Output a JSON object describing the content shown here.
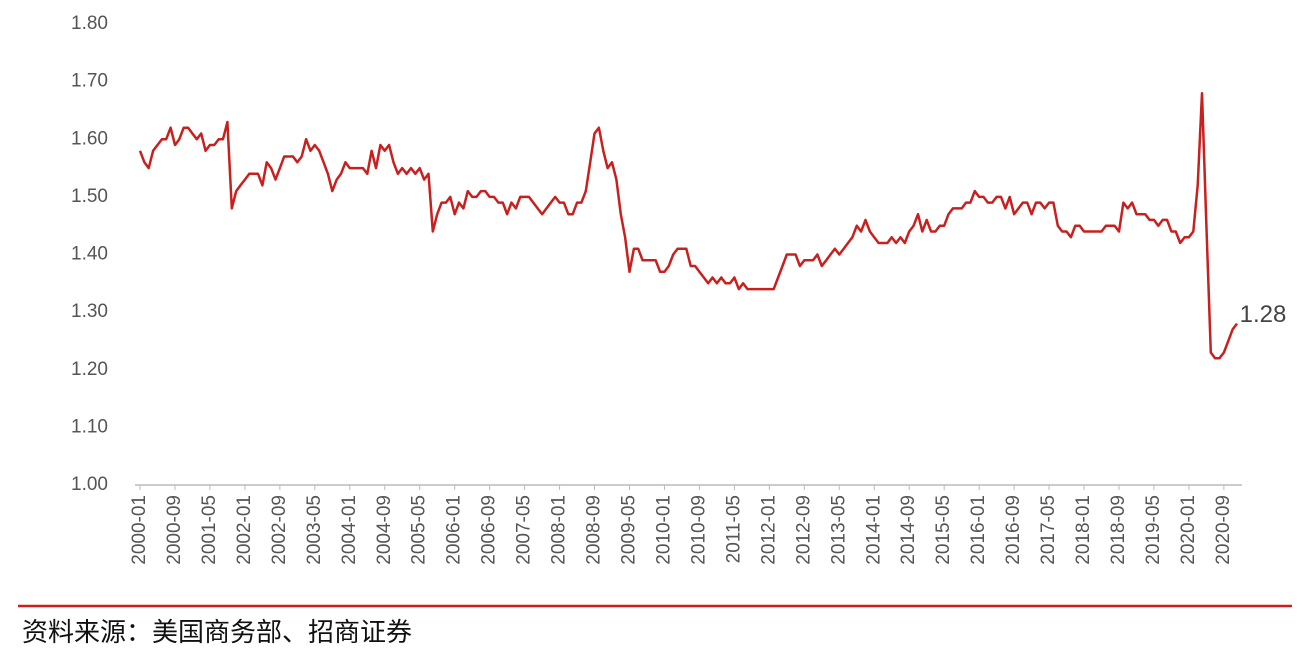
{
  "chart_data": {
    "type": "line",
    "categories": [
      "2000-01",
      null,
      null,
      null,
      null,
      null,
      null,
      null,
      "2000-09",
      null,
      null,
      null,
      null,
      null,
      null,
      null,
      "2001-05",
      null,
      null,
      null,
      null,
      null,
      null,
      null,
      "2002-01",
      null,
      null,
      null,
      null,
      null,
      null,
      null,
      "2002-09",
      null,
      null,
      null,
      null,
      null,
      null,
      null,
      "2003-05",
      null,
      null,
      null,
      null,
      null,
      null,
      null,
      "2004-01",
      null,
      null,
      null,
      null,
      null,
      null,
      null,
      "2004-09",
      null,
      null,
      null,
      null,
      null,
      null,
      null,
      "2005-05",
      null,
      null,
      null,
      null,
      null,
      null,
      null,
      "2006-01",
      null,
      null,
      null,
      null,
      null,
      null,
      null,
      "2006-09",
      null,
      null,
      null,
      null,
      null,
      null,
      null,
      "2007-05",
      null,
      null,
      null,
      null,
      null,
      null,
      null,
      "2008-01",
      null,
      null,
      null,
      null,
      null,
      null,
      null,
      "2008-09",
      null,
      null,
      null,
      null,
      null,
      null,
      null,
      "2009-05",
      null,
      null,
      null,
      null,
      null,
      null,
      null,
      "2010-01",
      null,
      null,
      null,
      null,
      null,
      null,
      null,
      "2010-09",
      null,
      null,
      null,
      null,
      null,
      null,
      null,
      "2011-05",
      null,
      null,
      null,
      null,
      null,
      null,
      null,
      "2012-01",
      null,
      null,
      null,
      null,
      null,
      null,
      null,
      "2012-09",
      null,
      null,
      null,
      null,
      null,
      null,
      null,
      "2013-05",
      null,
      null,
      null,
      null,
      null,
      null,
      null,
      "2014-01",
      null,
      null,
      null,
      null,
      null,
      null,
      null,
      "2014-09",
      null,
      null,
      null,
      null,
      null,
      null,
      null,
      "2015-05",
      null,
      null,
      null,
      null,
      null,
      null,
      null,
      "2016-01",
      null,
      null,
      null,
      null,
      null,
      null,
      null,
      "2016-09",
      null,
      null,
      null,
      null,
      null,
      null,
      null,
      "2017-05",
      null,
      null,
      null,
      null,
      null,
      null,
      null,
      "2018-01",
      null,
      null,
      null,
      null,
      null,
      null,
      null,
      "2018-09",
      null,
      null,
      null,
      null,
      null,
      null,
      null,
      "2019-05",
      null,
      null,
      null,
      null,
      null,
      null,
      null,
      "2020-01",
      null,
      null,
      null,
      null,
      null,
      null,
      null,
      "2020-09",
      null,
      null,
      null
    ],
    "series": [
      {
        "color": "#c8201e",
        "values": [
          1.58,
          1.56,
          1.55,
          1.58,
          1.59,
          1.6,
          1.6,
          1.62,
          1.59,
          1.6,
          1.62,
          1.62,
          1.61,
          1.6,
          1.61,
          1.58,
          1.59,
          1.59,
          1.6,
          1.6,
          1.63,
          1.48,
          1.51,
          1.52,
          1.53,
          1.54,
          1.54,
          1.54,
          1.52,
          1.56,
          1.55,
          1.53,
          1.55,
          1.57,
          1.57,
          1.57,
          1.56,
          1.57,
          1.6,
          1.58,
          1.59,
          1.58,
          1.56,
          1.54,
          1.51,
          1.53,
          1.54,
          1.56,
          1.55,
          1.55,
          1.55,
          1.55,
          1.54,
          1.58,
          1.55,
          1.59,
          1.58,
          1.59,
          1.56,
          1.54,
          1.55,
          1.54,
          1.55,
          1.54,
          1.55,
          1.53,
          1.54,
          1.44,
          1.47,
          1.49,
          1.49,
          1.5,
          1.47,
          1.49,
          1.48,
          1.51,
          1.5,
          1.5,
          1.51,
          1.51,
          1.5,
          1.5,
          1.49,
          1.49,
          1.47,
          1.49,
          1.48,
          1.5,
          1.5,
          1.5,
          1.49,
          1.48,
          1.47,
          1.48,
          1.49,
          1.5,
          1.49,
          1.49,
          1.47,
          1.47,
          1.49,
          1.49,
          1.51,
          1.56,
          1.61,
          1.62,
          1.58,
          1.55,
          1.56,
          1.53,
          1.47,
          1.43,
          1.37,
          1.41,
          1.41,
          1.39,
          1.39,
          1.39,
          1.39,
          1.37,
          1.37,
          1.38,
          1.4,
          1.41,
          1.41,
          1.41,
          1.38,
          1.38,
          1.37,
          1.36,
          1.35,
          1.36,
          1.35,
          1.36,
          1.35,
          1.35,
          1.36,
          1.34,
          1.35,
          1.34,
          1.34,
          1.34,
          1.34,
          1.34,
          1.34,
          1.34,
          1.36,
          1.38,
          1.4,
          1.4,
          1.4,
          1.38,
          1.39,
          1.39,
          1.39,
          1.4,
          1.38,
          1.39,
          1.4,
          1.41,
          1.4,
          1.41,
          1.42,
          1.43,
          1.45,
          1.44,
          1.46,
          1.44,
          1.43,
          1.42,
          1.42,
          1.42,
          1.43,
          1.42,
          1.43,
          1.42,
          1.44,
          1.45,
          1.47,
          1.44,
          1.46,
          1.44,
          1.44,
          1.45,
          1.45,
          1.47,
          1.48,
          1.48,
          1.48,
          1.49,
          1.49,
          1.51,
          1.5,
          1.5,
          1.49,
          1.49,
          1.5,
          1.5,
          1.48,
          1.5,
          1.47,
          1.48,
          1.49,
          1.49,
          1.47,
          1.49,
          1.49,
          1.48,
          1.49,
          1.49,
          1.45,
          1.44,
          1.44,
          1.43,
          1.45,
          1.45,
          1.44,
          1.44,
          1.44,
          1.44,
          1.44,
          1.45,
          1.45,
          1.45,
          1.44,
          1.49,
          1.48,
          1.49,
          1.47,
          1.47,
          1.47,
          1.46,
          1.46,
          1.45,
          1.46,
          1.46,
          1.44,
          1.44,
          1.42,
          1.43,
          1.43,
          1.44,
          1.52,
          1.68,
          1.45,
          1.23,
          1.22,
          1.22,
          1.23,
          1.25,
          1.27,
          1.28
        ]
      }
    ],
    "ylim": [
      1.0,
      1.8
    ],
    "yticks": [
      {
        "value": 1.0,
        "label": "1.00"
      },
      {
        "value": 1.1,
        "label": "1.10"
      },
      {
        "value": 1.2,
        "label": "1.20"
      },
      {
        "value": 1.3,
        "label": "1.30"
      },
      {
        "value": 1.4,
        "label": "1.40"
      },
      {
        "value": 1.5,
        "label": "1.50"
      },
      {
        "value": 1.6,
        "label": "1.60"
      },
      {
        "value": 1.7,
        "label": "1.70"
      },
      {
        "value": 1.8,
        "label": "1.80"
      }
    ],
    "grid": false,
    "source": "资料来源：美国商务部、招商证券"
  }
}
